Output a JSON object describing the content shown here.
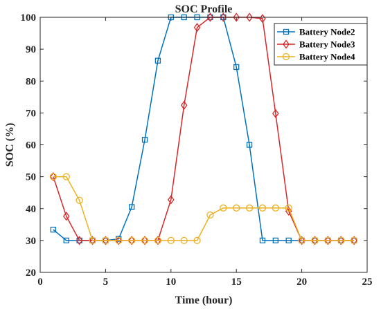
{
  "chart_data": {
    "type": "line",
    "title": "SOC Profile",
    "xlabel": "Time (hour)",
    "ylabel": "SOC (%)",
    "xlim": [
      0,
      25
    ],
    "ylim": [
      20,
      100
    ],
    "xticks": [
      0,
      5,
      10,
      15,
      20,
      25
    ],
    "yticks": [
      20,
      30,
      40,
      50,
      60,
      70,
      80,
      90,
      100
    ],
    "grid": false,
    "legend_position": "top-right",
    "x": [
      1,
      2,
      3,
      4,
      5,
      6,
      7,
      8,
      9,
      10,
      11,
      12,
      13,
      14,
      15,
      16,
      17,
      18,
      19,
      20,
      21,
      22,
      23,
      24
    ],
    "series": [
      {
        "name": "Battery Node2",
        "color": "#0072BD",
        "marker": "square",
        "values": [
          33.4,
          30,
          30,
          30,
          30,
          30.5,
          40.5,
          61.6,
          86.4,
          100,
          100,
          100,
          100,
          100,
          84.4,
          60,
          30,
          30,
          30,
          30,
          30,
          30,
          30,
          30
        ]
      },
      {
        "name": "Battery Node3",
        "color": "#D62728",
        "marker": "diamond",
        "values": [
          50,
          37.6,
          30,
          30,
          30,
          30,
          30,
          30,
          30,
          42.8,
          72.4,
          96.8,
          100,
          100,
          100,
          100,
          99.6,
          69.8,
          39.2,
          30,
          30,
          30,
          30,
          30
        ]
      },
      {
        "name": "Battery Node4",
        "color": "#EDB120",
        "marker": "circle",
        "values": [
          50,
          50,
          42.6,
          30,
          30,
          30,
          30,
          30,
          30,
          30,
          30,
          30,
          38,
          40.2,
          40.2,
          40.2,
          40.2,
          40.2,
          40.2,
          30,
          30,
          30,
          30,
          30
        ]
      }
    ]
  }
}
